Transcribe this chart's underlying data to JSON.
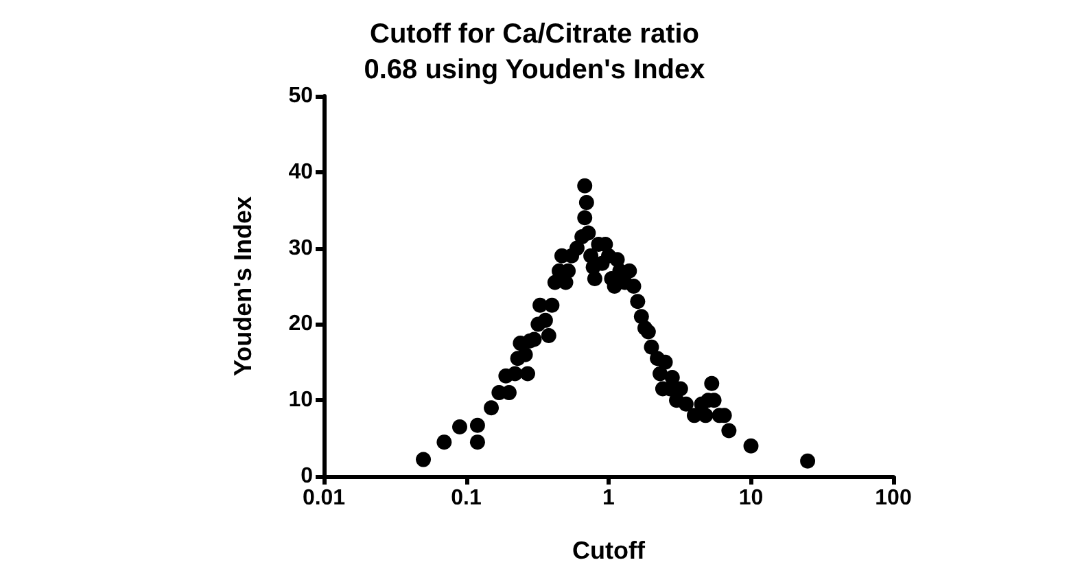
{
  "chart_data": {
    "type": "scatter",
    "title": "Cutoff for Ca/Citrate ratio\n0.68 using Youden's Index",
    "xlabel": "Cutoff",
    "ylabel": "Youden's Index",
    "log": "x",
    "xlim": [
      0.01,
      100
    ],
    "xticks": [
      0.01,
      0.1,
      1,
      10,
      100
    ],
    "ylim": [
      0,
      50
    ],
    "yticks": [
      0,
      10,
      20,
      30,
      40,
      50
    ],
    "grid": false,
    "marker": "circle",
    "x": [
      0.05,
      0.07,
      0.09,
      0.12,
      0.12,
      0.15,
      0.17,
      0.19,
      0.2,
      0.22,
      0.23,
      0.24,
      0.26,
      0.28,
      0.27,
      0.3,
      0.32,
      0.33,
      0.36,
      0.38,
      0.4,
      0.42,
      0.45,
      0.47,
      0.5,
      0.52,
      0.55,
      0.6,
      0.65,
      0.68,
      0.68,
      0.7,
      0.72,
      0.75,
      0.78,
      0.8,
      0.85,
      0.9,
      0.95,
      1.0,
      1.05,
      1.1,
      1.15,
      1.2,
      1.3,
      1.4,
      1.5,
      1.6,
      1.7,
      1.8,
      1.9,
      2.0,
      2.2,
      2.3,
      2.5,
      2.4,
      2.7,
      2.8,
      3.0,
      3.2,
      3.5,
      4.0,
      4.5,
      4.8,
      5.0,
      5.3,
      5.5,
      6.0,
      6.5,
      7.0,
      10,
      25
    ],
    "values": [
      2.2,
      4.5,
      6.5,
      6.7,
      4.5,
      9,
      11,
      13.2,
      11,
      13.5,
      15.5,
      17.5,
      16,
      17.8,
      13.5,
      18,
      20,
      22.5,
      20.5,
      18.5,
      22.5,
      25.5,
      27,
      29,
      25.5,
      27,
      29,
      30,
      31.5,
      34,
      38.2,
      36,
      32,
      29,
      27.5,
      26,
      30.5,
      28,
      30.5,
      29,
      26,
      25,
      28.5,
      27,
      25.5,
      27,
      25,
      23,
      21,
      19.5,
      19,
      17,
      15.5,
      13.5,
      15,
      11.5,
      11.5,
      13,
      10,
      11.5,
      9.5,
      8,
      9.5,
      8,
      10,
      12.2,
      10,
      8,
      8,
      6,
      4,
      2
    ],
    "color": "#000000"
  }
}
